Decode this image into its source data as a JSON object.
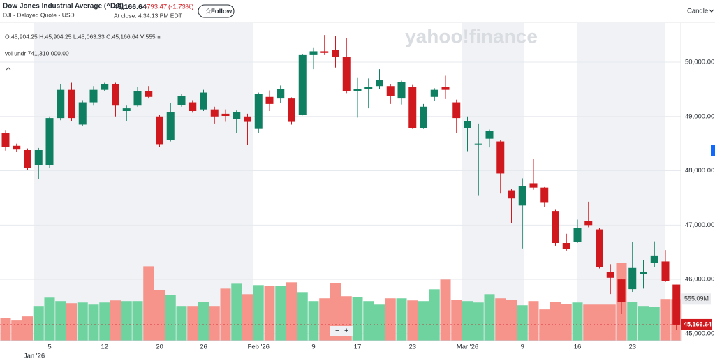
{
  "header": {
    "title": "Dow Jones Industrial Average (^DJI)",
    "subtitle": "DJI - Delayed Quote • USD",
    "price": "45,166.64",
    "change": "-793.47",
    "change_pct": "(-1.73%)",
    "close_time": "At close: 4:34:13 PM EDT",
    "follow": "Follow",
    "chart_style": "Candle",
    "watermark": "yahoo!finance",
    "readout": "O:45,904.25  H:45,904.25  L:45,063.33  C:45,166.64  V:555m",
    "volume_readout": "vol undr  741,310,000.00",
    "zoom_out": "−",
    "zoom_in": "+"
  },
  "chart_data": {
    "type": "candlestick",
    "categories": [
      null,
      null,
      null,
      null,
      "5",
      null,
      null,
      null,
      null,
      "12",
      null,
      null,
      null,
      null,
      "20",
      null,
      null,
      null,
      "26",
      null,
      null,
      null,
      null,
      "Feb '26",
      null,
      null,
      null,
      null,
      "9",
      null,
      null,
      null,
      "17",
      null,
      null,
      null,
      null,
      "23",
      null,
      null,
      null,
      null,
      "Mar '26",
      null,
      null,
      null,
      null,
      "9",
      null,
      null,
      null,
      null,
      "16",
      null,
      null,
      null,
      null,
      "23",
      null,
      null,
      null,
      null
    ],
    "secondary_label": "Jan '26",
    "open": [
      48690,
      48460,
      48380,
      48100,
      48100,
      48970,
      49490,
      48850,
      49260,
      49490,
      49590,
      49100,
      49200,
      49460,
      49000,
      48560,
      49210,
      49260,
      49130,
      49130,
      49050,
      48950,
      49000,
      48770,
      49360,
      49330,
      49330,
      49030,
      50130,
      50200,
      50230,
      50100,
      49460,
      49510,
      49560,
      49560,
      49330,
      49540,
      48790,
      49360,
      49540,
      49260,
      48790,
      48490,
      48590,
      48540,
      47640,
      47360,
      47770,
      47690,
      47260,
      46670,
      46690,
      47080,
      46920,
      46130,
      46000,
      45820,
      46100,
      46310,
      46330,
      45904.25
    ],
    "high": [
      48750,
      48500,
      48410,
      48420,
      49000,
      49600,
      49620,
      49300,
      49560,
      49620,
      49620,
      49200,
      49540,
      49560,
      49030,
      49250,
      49420,
      49300,
      49490,
      49180,
      49130,
      49110,
      49050,
      49440,
      49480,
      49570,
      49350,
      50150,
      50260,
      50500,
      50480,
      50450,
      49720,
      49700,
      49870,
      49600,
      49660,
      49580,
      49230,
      49520,
      49750,
      49310,
      49000,
      48870,
      48760,
      48560,
      47660,
      47860,
      48220,
      47700,
      47280,
      46840,
      47100,
      47430,
      46940,
      46280,
      46010,
      46690,
      46360,
      46700,
      46540,
      45904.25
    ],
    "low": [
      48370,
      48350,
      48020,
      47850,
      48050,
      48930,
      48920,
      48820,
      49200,
      49470,
      49000,
      48910,
      49180,
      49330,
      48440,
      48540,
      49180,
      49070,
      49100,
      48870,
      48900,
      48690,
      48470,
      48690,
      49100,
      49250,
      48850,
      49020,
      49870,
      50130,
      49900,
      49430,
      48980,
      49150,
      49500,
      49230,
      49220,
      48770,
      48770,
      49280,
      49320,
      48700,
      48360,
      47550,
      48430,
      47580,
      47030,
      46570,
      47650,
      47330,
      46620,
      46530,
      46670,
      46960,
      46200,
      45730,
      45360,
      45770,
      45830,
      46230,
      45950,
      45063.33
    ],
    "close": [
      48440,
      48390,
      48050,
      48380,
      48970,
      49490,
      48970,
      49260,
      49490,
      49590,
      49200,
      49150,
      49460,
      49360,
      48490,
      49080,
      49380,
      49100,
      49440,
      49000,
      49010,
      49080,
      48900,
      49410,
      49230,
      49500,
      48900,
      50130,
      50200,
      50170,
      50100,
      49460,
      49510,
      49540,
      49670,
      49380,
      49640,
      48790,
      49180,
      49490,
      49490,
      48970,
      48920,
      48500,
      48740,
      47950,
      47490,
      47720,
      47690,
      47410,
      46670,
      46560,
      46950,
      47000,
      46230,
      46030,
      45590,
      46210,
      46130,
      46440,
      45970,
      45166.64
    ],
    "volume": [
      306,
      278,
      324,
      463,
      574,
      528,
      500,
      509,
      481,
      509,
      537,
      528,
      528,
      991,
      676,
      611,
      463,
      463,
      519,
      463,
      694,
      759,
      620,
      741,
      731,
      731,
      778,
      648,
      528,
      565,
      769,
      593,
      583,
      528,
      481,
      565,
      565,
      537,
      528,
      685,
      815,
      546,
      528,
      509,
      620,
      565,
      546,
      472,
      528,
      417,
      519,
      491,
      509,
      481,
      481,
      481,
      1037,
      519,
      463,
      454,
      556,
      555.09
    ],
    "ylim": [
      44870,
      50720
    ],
    "yticks": [
      {
        "value": 45000,
        "label": "45,000.00"
      },
      {
        "value": 46000,
        "label": "46,000.00"
      },
      {
        "value": 47000,
        "label": "47,000.00"
      },
      {
        "value": 48000,
        "label": "48,000.00"
      },
      {
        "value": 49000,
        "label": "49,000.00"
      },
      {
        "value": 50000,
        "label": "50,000.00"
      }
    ],
    "y2lim": [
      0,
      4230
    ],
    "last_price": {
      "value": 45166.64,
      "label": "45,166.64"
    },
    "last_volume": {
      "value": 555.09,
      "label": "555.09M"
    },
    "up_color": "#0e7f60",
    "down_color": "#d0191f",
    "volume_up_color": "#6fd3a0",
    "volume_down_color": "#f6938a",
    "grid": true
  }
}
